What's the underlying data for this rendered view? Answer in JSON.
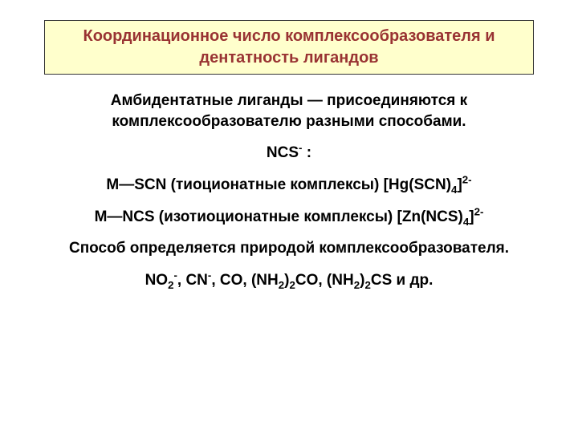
{
  "title": "Координационное число комплексообразователя и дентатность лигандов",
  "p1": "Амбидентатные лиганды — присоединяются к комплексообразователю разными способами.",
  "ncs_label_prefix": "NCS",
  "ncs_super": "-",
  "ncs_label_suffix": " :",
  "mscn_left": "М—SCN (тиоционатные комплексы) [Hg(SCN)",
  "mscn_sub": "4",
  "mscn_right": "]",
  "mscn_super": "2-",
  "mncs_left": "М—NCS (изотиоционатные комплексы)  [Zn(NCS)",
  "mncs_sub": "4",
  "mncs_right": "]",
  "mncs_super": "2-",
  "p2": "Способ определяется природой комплексообразователя.",
  "final": {
    "s1": "NO",
    "s1sub": "2",
    "s1sup": "-",
    "s2": ", CN",
    "s2sup": "-",
    "s3": ", CO, (NH",
    "s3sub": "2",
    "s4": ")",
    "s4sub": "2",
    "s5": "CO,  (NH",
    "s5sub": "2",
    "s6": ")",
    "s6sub": "2",
    "s7": "CS и др."
  },
  "colors": {
    "title_bg": "#ffffcc",
    "title_text": "#993333",
    "title_border": "#333333",
    "body_text": "#000000",
    "background": "#ffffff"
  }
}
